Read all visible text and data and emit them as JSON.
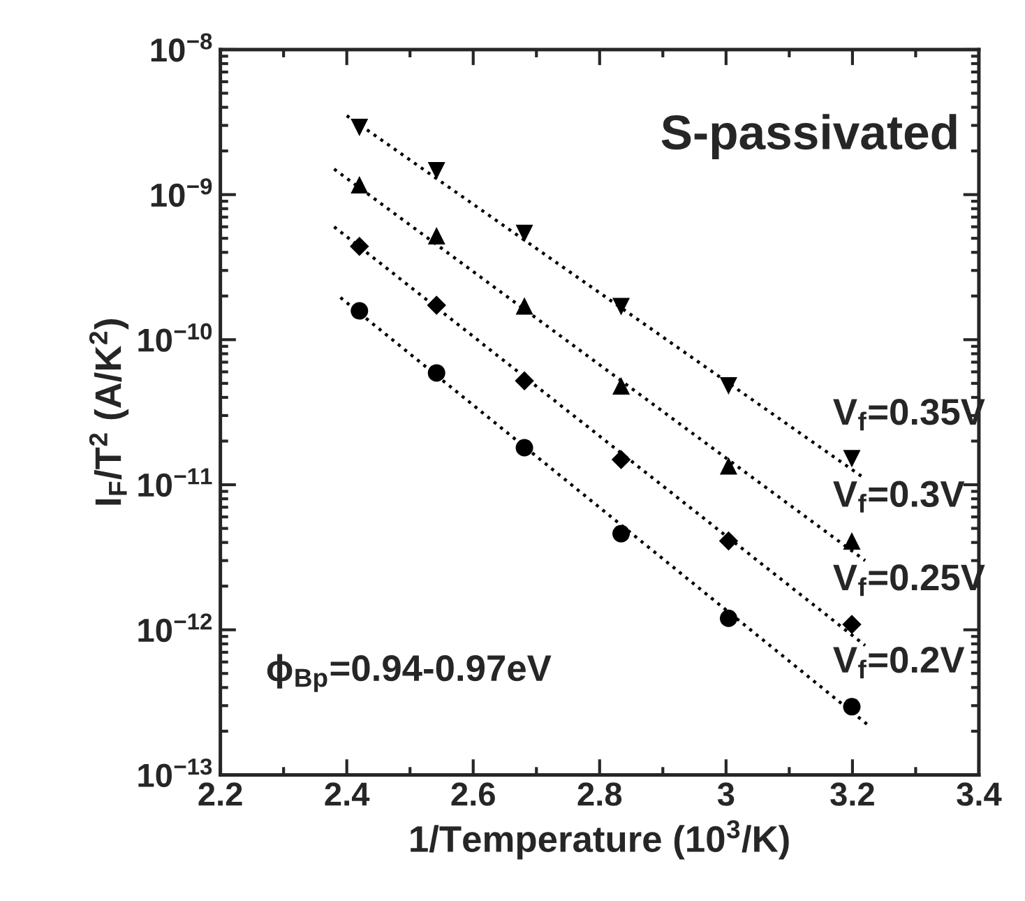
{
  "chart_data": {
    "type": "scatter",
    "xlabel": "1/Temperature (10$^{3}$/K)",
    "ylabel": "I$_{F}$/T$^{2}$ (A/K$^{2}$)",
    "log": "y",
    "xlim": [
      2.2,
      3.4
    ],
    "xticks": [
      2.2,
      2.4,
      2.6,
      2.8,
      3,
      3.2,
      3.4
    ],
    "ylim": [
      1e-13,
      1e-08
    ],
    "yticks": [
      {
        "value": 1e-13,
        "label": "10$^{−13}$"
      },
      {
        "value": 1e-12,
        "label": "10$^{−12}$"
      },
      {
        "value": 1e-11,
        "label": "10$^{−11}$"
      },
      {
        "value": 1e-10,
        "label": "10$^{−10}$"
      },
      {
        "value": 1e-09,
        "label": "10$^{−9}$"
      },
      {
        "value": 1e-08,
        "label": "10$^{−8}$"
      }
    ],
    "grid": false,
    "legend": false,
    "annotations": [
      "S-passivated",
      "ϕ$_{Bp}$=0.94-0.97eV"
    ],
    "series": [
      {
        "name": "V$_{f}$=0.35V",
        "color": "#000000",
        "marker": "triangle_down",
        "x": [
          2.42,
          2.542,
          2.681,
          2.834,
          3.004,
          3.199
        ],
        "values": [
          2.9e-09,
          1.46e-09,
          5.4e-10,
          1.69e-10,
          4.8e-11,
          1.51e-11
        ]
      },
      {
        "name": "V$_{f}$=0.3V",
        "color": "#000000",
        "marker": "triangle",
        "x": [
          2.42,
          2.542,
          2.681,
          2.834,
          3.004,
          3.199
        ],
        "values": [
          1.17e-09,
          5.2e-10,
          1.71e-10,
          4.8e-11,
          1.35e-11,
          4.1e-12
        ]
      },
      {
        "name": "V$_{f}$=0.25V",
        "color": "#000000",
        "marker": "diamond",
        "x": [
          2.42,
          2.542,
          2.681,
          2.834,
          3.004,
          3.199
        ],
        "values": [
          4.4e-10,
          1.73e-10,
          5.2e-11,
          1.49e-11,
          4.1e-12,
          1.09e-12
        ]
      },
      {
        "name": "V$_{f}$=0.2V",
        "color": "#000000",
        "marker": "circle",
        "x": [
          2.42,
          2.542,
          2.681,
          2.834,
          3.004,
          3.199
        ],
        "values": [
          1.58e-10,
          5.9e-11,
          1.8e-11,
          4.6e-12,
          1.2e-12,
          2.95e-13
        ]
      },
      {
        "type": "line",
        "color": "#000000",
        "line_style": "dotted",
        "marker": "none",
        "x": [
          2.4,
          3.22
        ],
        "values": [
          3.5e-09,
          1.1e-11
        ]
      },
      {
        "type": "line",
        "color": "#000000",
        "line_style": "dotted",
        "marker": "none",
        "x": [
          2.38,
          3.22
        ],
        "values": [
          1.5e-09,
          3e-12
        ]
      },
      {
        "type": "line",
        "color": "#000000",
        "line_style": "dotted",
        "marker": "none",
        "x": [
          2.38,
          3.22
        ],
        "values": [
          6e-10,
          7.8e-13
        ]
      },
      {
        "type": "line",
        "color": "#000000",
        "line_style": "dotted",
        "marker": "none",
        "x": [
          2.39,
          3.225
        ],
        "values": [
          1.95e-10,
          2.2e-13
        ]
      }
    ]
  }
}
